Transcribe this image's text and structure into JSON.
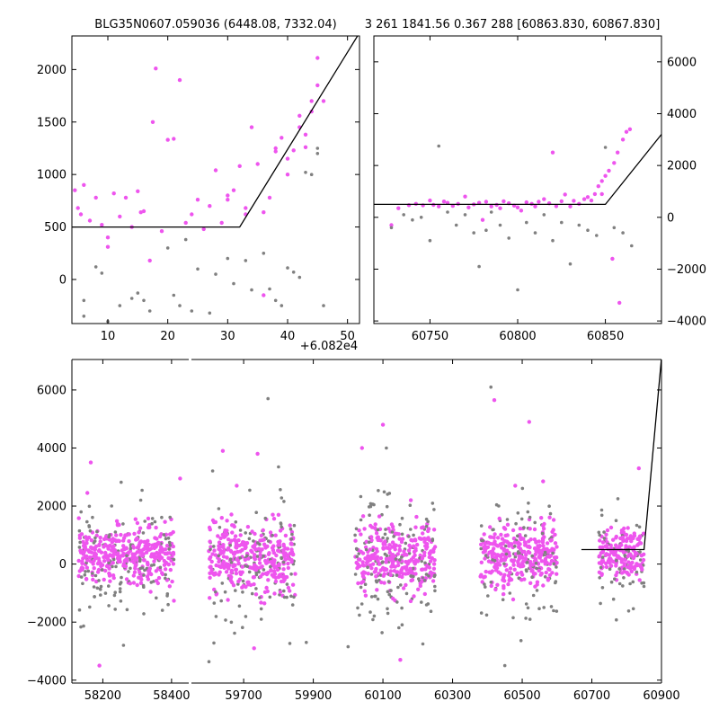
{
  "colors": {
    "primary": "#ee55ee",
    "secondary": "#808080",
    "model": "#000000",
    "background": "#ffffff"
  },
  "chart_data": [
    {
      "type": "scatter",
      "name": "top-left",
      "title": "BLG35N0607.059036 (6448.08, 7332.04)",
      "offset_label": "+6.082e4",
      "xlim": [
        4,
        52
      ],
      "ylim": [
        -420,
        2320
      ],
      "xticks": [
        10,
        20,
        30,
        40,
        50
      ],
      "xtick_labels": [
        "10",
        "20",
        "30",
        "40",
        "50"
      ],
      "yticks": [
        0,
        500,
        1000,
        1500,
        2000
      ],
      "ytick_labels": [
        "0",
        "500",
        "1000",
        "1500",
        "2000"
      ],
      "yaxis_side": "left",
      "model": {
        "x": [
          0,
          32,
          52
        ],
        "y": [
          500,
          500,
          2350
        ]
      },
      "series": [
        {
          "name": "primary",
          "color": "#ee55ee",
          "points": [
            [
              4.5,
              850
            ],
            [
              5,
              680
            ],
            [
              5.5,
              620
            ],
            [
              6,
              900
            ],
            [
              7,
              560
            ],
            [
              8,
              780
            ],
            [
              9,
              520
            ],
            [
              10,
              400
            ],
            [
              10,
              310
            ],
            [
              11,
              820
            ],
            [
              12,
              600
            ],
            [
              13,
              780
            ],
            [
              14,
              500
            ],
            [
              15,
              840
            ],
            [
              15.5,
              640
            ],
            [
              16,
              650
            ],
            [
              17,
              180
            ],
            [
              17.5,
              1500
            ],
            [
              18,
              2010
            ],
            [
              19,
              460
            ],
            [
              20,
              1330
            ],
            [
              21,
              1340
            ],
            [
              22,
              1900
            ],
            [
              23,
              540
            ],
            [
              24,
              620
            ],
            [
              25,
              760
            ],
            [
              26,
              480
            ],
            [
              27,
              700
            ],
            [
              28,
              1040
            ],
            [
              29,
              540
            ],
            [
              30,
              760
            ],
            [
              30,
              800
            ],
            [
              31,
              850
            ],
            [
              32,
              1080
            ],
            [
              33,
              680
            ],
            [
              34,
              1450
            ],
            [
              35,
              1100
            ],
            [
              36,
              640
            ],
            [
              37,
              780
            ],
            [
              38,
              1220
            ],
            [
              38,
              1250
            ],
            [
              39,
              1350
            ],
            [
              40,
              1000
            ],
            [
              40,
              1150
            ],
            [
              41,
              1230
            ],
            [
              42,
              1450
            ],
            [
              42,
              1560
            ],
            [
              43,
              1260
            ],
            [
              43,
              1380
            ],
            [
              44,
              1600
            ],
            [
              44,
              1700
            ],
            [
              45,
              2110
            ],
            [
              45,
              1850
            ],
            [
              46,
              1700
            ],
            [
              36,
              -150
            ],
            [
              33,
              620
            ]
          ]
        },
        {
          "name": "secondary",
          "color": "#808080",
          "points": [
            [
              6,
              -350
            ],
            [
              6,
              -200
            ],
            [
              8,
              120
            ],
            [
              9,
              60
            ],
            [
              10,
              -400
            ],
            [
              12,
              -250
            ],
            [
              14,
              -180
            ],
            [
              15,
              -130
            ],
            [
              16,
              -200
            ],
            [
              17,
              -300
            ],
            [
              20,
              300
            ],
            [
              21,
              -150
            ],
            [
              22,
              -250
            ],
            [
              23,
              380
            ],
            [
              24,
              -300
            ],
            [
              25,
              100
            ],
            [
              27,
              -320
            ],
            [
              28,
              50
            ],
            [
              30,
              200
            ],
            [
              31,
              -40
            ],
            [
              33,
              180
            ],
            [
              34,
              -100
            ],
            [
              36,
              250
            ],
            [
              37,
              -90
            ],
            [
              38,
              -200
            ],
            [
              39,
              -250
            ],
            [
              40,
              110
            ],
            [
              41,
              70
            ],
            [
              42,
              20
            ],
            [
              43,
              1020
            ],
            [
              44,
              1000
            ],
            [
              45,
              1200
            ],
            [
              45,
              1250
            ],
            [
              46,
              -250
            ]
          ]
        }
      ]
    },
    {
      "type": "scatter",
      "name": "top-right",
      "title": "3 261 1841.56 0.367 288 [60863.830, 60867.830]",
      "xlim": [
        60718,
        60882
      ],
      "ylim": [
        -4100,
        7000
      ],
      "xticks": [
        60750,
        60800,
        60850
      ],
      "xtick_labels": [
        "60750",
        "60800",
        "60850"
      ],
      "yticks": [
        -4000,
        -2000,
        0,
        2000,
        4000,
        6000
      ],
      "ytick_labels": [
        "−4000",
        "−2000",
        "0",
        "2000",
        "4000",
        "6000"
      ],
      "yaxis_side": "right",
      "model": {
        "x": [
          60718,
          60850,
          60882
        ],
        "y": [
          500,
          500,
          3200
        ]
      },
      "series": [
        {
          "name": "primary",
          "color": "#ee55ee",
          "points": [
            [
              60728,
              -300
            ],
            [
              60732,
              350
            ],
            [
              60738,
              470
            ],
            [
              60742,
              520
            ],
            [
              60746,
              460
            ],
            [
              60750,
              650
            ],
            [
              60752,
              480
            ],
            [
              60755,
              420
            ],
            [
              60758,
              610
            ],
            [
              60760,
              560
            ],
            [
              60763,
              440
            ],
            [
              60766,
              520
            ],
            [
              60770,
              800
            ],
            [
              60772,
              380
            ],
            [
              60775,
              500
            ],
            [
              60778,
              560
            ],
            [
              60780,
              -100
            ],
            [
              60782,
              600
            ],
            [
              60785,
              420
            ],
            [
              60788,
              480
            ],
            [
              60790,
              350
            ],
            [
              60792,
              620
            ],
            [
              60795,
              540
            ],
            [
              60798,
              450
            ],
            [
              60800,
              380
            ],
            [
              60802,
              260
            ],
            [
              60805,
              580
            ],
            [
              60808,
              520
            ],
            [
              60810,
              420
            ],
            [
              60812,
              600
            ],
            [
              60815,
              700
            ],
            [
              60818,
              540
            ],
            [
              60820,
              2500
            ],
            [
              60822,
              430
            ],
            [
              60825,
              620
            ],
            [
              60827,
              880
            ],
            [
              60830,
              420
            ],
            [
              60832,
              640
            ],
            [
              60835,
              520
            ],
            [
              60838,
              700
            ],
            [
              60840,
              780
            ],
            [
              60842,
              650
            ],
            [
              60844,
              900
            ],
            [
              60846,
              1200
            ],
            [
              60848,
              1400
            ],
            [
              60850,
              1600
            ],
            [
              60852,
              1800
            ],
            [
              60855,
              2100
            ],
            [
              60857,
              2500
            ],
            [
              60860,
              3000
            ],
            [
              60862,
              3300
            ],
            [
              60864,
              3400
            ],
            [
              60858,
              -3300
            ],
            [
              60854,
              -1600
            ],
            [
              60848,
              900
            ]
          ]
        },
        {
          "name": "secondary",
          "color": "#808080",
          "points": [
            [
              60728,
              -400
            ],
            [
              60735,
              100
            ],
            [
              60740,
              -100
            ],
            [
              60745,
              0
            ],
            [
              60750,
              -900
            ],
            [
              60755,
              2750
            ],
            [
              60760,
              200
            ],
            [
              60765,
              -300
            ],
            [
              60770,
              100
            ],
            [
              60775,
              -600
            ],
            [
              60778,
              -1900
            ],
            [
              60782,
              -500
            ],
            [
              60785,
              200
            ],
            [
              60790,
              -300
            ],
            [
              60795,
              -800
            ],
            [
              60800,
              -2800
            ],
            [
              60805,
              -200
            ],
            [
              60810,
              -600
            ],
            [
              60815,
              100
            ],
            [
              60820,
              -900
            ],
            [
              60825,
              -200
            ],
            [
              60830,
              -1800
            ],
            [
              60835,
              -300
            ],
            [
              60840,
              -500
            ],
            [
              60845,
              -700
            ],
            [
              60850,
              2700
            ],
            [
              60855,
              -400
            ],
            [
              60860,
              -600
            ],
            [
              60865,
              -1100
            ]
          ]
        }
      ]
    },
    {
      "type": "scatter",
      "name": "bottom",
      "xlim": [
        58110,
        60850
      ],
      "ylim": [
        -4100,
        7050
      ],
      "xtick_labels": [
        "58200",
        "58400",
        "59700",
        "59900",
        "60100",
        "60300",
        "60500",
        "60700",
        "60900"
      ],
      "yticks": [
        -4000,
        -2000,
        0,
        2000,
        4000,
        6000
      ],
      "ytick_labels": [
        "−4000",
        "−2000",
        "0",
        "2000",
        "4000",
        "6000"
      ],
      "yaxis_side": "left",
      "segments": [
        {
          "name": "segment-1",
          "range": [
            58110,
            58450
          ],
          "ticks": [
            58200,
            58400
          ],
          "clusters": [
            {
              "x": [
                58130,
                58410
              ],
              "center": 250,
              "spread": 1100
            }
          ]
        },
        {
          "name": "segment-2",
          "range": [
            59550,
            60900
          ],
          "ticks": [
            59700,
            59900,
            60100,
            60300,
            60500,
            60700,
            60900
          ],
          "clusters": [
            {
              "x": [
                59600,
                59850
              ],
              "center": 250,
              "spread": 1300
            },
            {
              "x": [
                60020,
                60250
              ],
              "center": 300,
              "spread": 1300
            },
            {
              "x": [
                60380,
                60600
              ],
              "center": 300,
              "spread": 1200
            },
            {
              "x": [
                60720,
                60850
              ],
              "center": 350,
              "spread": 900
            }
          ]
        }
      ],
      "model": {
        "x": [
          60670,
          60850,
          60900
        ],
        "y": [
          500,
          500,
          7100
        ]
      },
      "outliers": {
        "primary": [
          [
            58165,
            3500
          ],
          [
            58155,
            2450
          ],
          [
            58425,
            2950
          ],
          [
            59640,
            3900
          ],
          [
            59680,
            2700
          ],
          [
            59740,
            3800
          ],
          [
            60040,
            4000
          ],
          [
            60100,
            4800
          ],
          [
            60180,
            2200
          ],
          [
            60420,
            5650
          ],
          [
            60480,
            2700
          ],
          [
            60520,
            4900
          ],
          [
            60560,
            2850
          ],
          [
            60835,
            3300
          ],
          [
            59730,
            -2900
          ],
          [
            60150,
            -3300
          ],
          [
            58190,
            -3500
          ]
        ],
        "secondary": [
          [
            59770,
            5700
          ],
          [
            60410,
            6100
          ],
          [
            60110,
            4000
          ],
          [
            59800,
            3350
          ],
          [
            58260,
            -2800
          ],
          [
            59880,
            -2700
          ],
          [
            60000,
            -2850
          ],
          [
            60450,
            -3500
          ]
        ]
      }
    }
  ]
}
